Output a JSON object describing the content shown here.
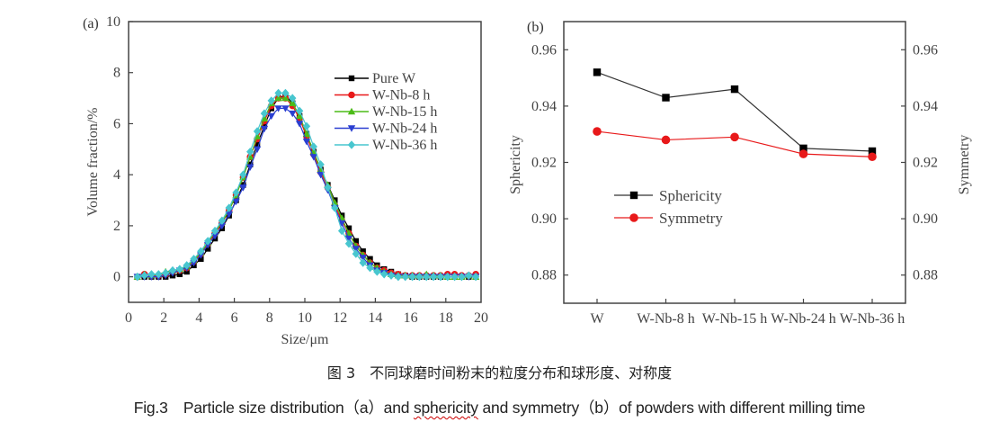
{
  "chart_data": [
    {
      "type": "line",
      "panel_label": "(a)",
      "title": "",
      "xlabel": "Size/μm",
      "ylabel": "Volume fraction/%",
      "xlim": [
        0,
        20
      ],
      "ylim": [
        -1,
        10
      ],
      "xticks": [
        0,
        2,
        4,
        6,
        8,
        10,
        12,
        14,
        16,
        18,
        20
      ],
      "yticks": [
        0,
        2,
        4,
        6,
        8,
        10
      ],
      "grid": false,
      "legend_position": "upper-right",
      "x": [
        0.5,
        0.9,
        1.3,
        1.7,
        2.1,
        2.5,
        2.9,
        3.3,
        3.7,
        4.1,
        4.5,
        4.9,
        5.3,
        5.7,
        6.1,
        6.5,
        6.9,
        7.3,
        7.7,
        8.1,
        8.5,
        8.9,
        9.3,
        9.7,
        10.1,
        10.5,
        10.9,
        11.3,
        11.7,
        12.1,
        12.5,
        12.9,
        13.3,
        13.7,
        14.1,
        14.5,
        14.9,
        15.3,
        15.7,
        16.1,
        16.5,
        16.9,
        17.3,
        17.7,
        18.1,
        18.5,
        18.9,
        19.3,
        19.7
      ],
      "series": [
        {
          "name": "Pure W",
          "color": "#000000",
          "marker": "square",
          "values": [
            0,
            0,
            0,
            0,
            0,
            0.05,
            0.1,
            0.2,
            0.45,
            0.7,
            1.1,
            1.5,
            1.9,
            2.4,
            3.0,
            3.6,
            4.4,
            5.2,
            5.9,
            6.6,
            7.0,
            7.1,
            6.8,
            6.3,
            5.6,
            4.9,
            4.2,
            3.6,
            3.0,
            2.4,
            1.9,
            1.4,
            1.0,
            0.7,
            0.45,
            0.3,
            0.2,
            0.1,
            0.05,
            0,
            0,
            0,
            0,
            0,
            0,
            0,
            0,
            0,
            0
          ]
        },
        {
          "name": "W-Nb-8 h",
          "color": "#e8191a",
          "marker": "circle",
          "values": [
            0,
            0.1,
            0.05,
            0.05,
            0.1,
            0.2,
            0.25,
            0.35,
            0.6,
            0.9,
            1.3,
            1.7,
            2.1,
            2.6,
            3.2,
            3.9,
            4.7,
            5.4,
            6.1,
            6.7,
            7.0,
            7.0,
            6.7,
            6.2,
            5.5,
            4.8,
            4.1,
            3.5,
            2.8,
            2.2,
            1.7,
            1.2,
            0.85,
            0.55,
            0.35,
            0.25,
            0.15,
            0.1,
            0.05,
            0.05,
            0.05,
            0.05,
            0.05,
            0.05,
            0.1,
            0.1,
            0.05,
            0.05,
            0.1
          ]
        },
        {
          "name": "W-Nb-15 h",
          "color": "#4cbb17",
          "marker": "triangle-up",
          "values": [
            0,
            0.1,
            0.05,
            0.1,
            0.2,
            0.25,
            0.3,
            0.4,
            0.65,
            0.95,
            1.35,
            1.75,
            2.15,
            2.6,
            3.2,
            3.9,
            4.7,
            5.5,
            6.2,
            6.8,
            7.0,
            7.0,
            6.8,
            6.3,
            5.6,
            4.9,
            4.2,
            3.6,
            2.9,
            2.3,
            1.7,
            1.2,
            0.85,
            0.55,
            0.35,
            0.2,
            0.1,
            0.05,
            0.05,
            0.05,
            0.05,
            0.1,
            0.05,
            0.05,
            0,
            0,
            0,
            0.05,
            0
          ]
        },
        {
          "name": "W-Nb-24 h",
          "color": "#2a3fd1",
          "marker": "triangle-down",
          "values": [
            0,
            0,
            0,
            0,
            0.05,
            0.15,
            0.25,
            0.35,
            0.55,
            0.85,
            1.25,
            1.6,
            2.0,
            2.45,
            2.95,
            3.5,
            4.3,
            5.0,
            5.8,
            6.3,
            6.6,
            6.6,
            6.4,
            6.0,
            5.3,
            4.7,
            4.0,
            3.4,
            2.7,
            2.1,
            1.5,
            1.1,
            0.75,
            0.45,
            0.25,
            0.15,
            0.05,
            0,
            0,
            0,
            0,
            0,
            0,
            0,
            0,
            0,
            0,
            0,
            0
          ]
        },
        {
          "name": "W-Nb-36 h",
          "color": "#48c6cf",
          "marker": "diamond",
          "values": [
            0,
            0.05,
            0.1,
            0.1,
            0.15,
            0.25,
            0.3,
            0.45,
            0.7,
            1.0,
            1.4,
            1.8,
            2.2,
            2.7,
            3.3,
            4.0,
            4.9,
            5.7,
            6.4,
            6.9,
            7.2,
            7.2,
            7.0,
            6.5,
            5.9,
            5.1,
            4.4,
            3.5,
            2.7,
            1.8,
            1.3,
            0.9,
            0.55,
            0.35,
            0.2,
            0.1,
            0.05,
            0,
            0,
            0,
            0,
            0,
            0,
            0,
            0,
            0,
            0,
            0.05,
            0
          ]
        }
      ]
    },
    {
      "type": "line",
      "panel_label": "(b)",
      "title": "",
      "xlabel": "",
      "ylabel": "Sphericity",
      "ylabel_right": "Symmetry",
      "categories": [
        "W",
        "W-Nb-8 h",
        "W-Nb-15 h",
        "W-Nb-24 h",
        "W-Nb-36 h"
      ],
      "ylim": [
        0.87,
        0.97
      ],
      "ylim_right": [
        0.87,
        0.97
      ],
      "yticks": [
        "0.88",
        "0.90",
        "0.92",
        "0.94",
        "0.96"
      ],
      "grid": false,
      "legend_position": "center-left",
      "series": [
        {
          "name": "Sphericity",
          "color": "#000000",
          "line_color": "#333333",
          "marker": "square",
          "axis": "left",
          "values": [
            0.952,
            0.943,
            0.946,
            0.925,
            0.924
          ]
        },
        {
          "name": "Symmetry",
          "color": "#e8191a",
          "line_color": "#e8191a",
          "marker": "circle",
          "axis": "right",
          "values": [
            0.931,
            0.928,
            0.929,
            0.923,
            0.922
          ]
        }
      ]
    }
  ],
  "caption": {
    "chinese": "图 3　不同球磨时间粉末的粒度分布和球形度、对称度",
    "english_pre": "Fig.3　Particle size distribution（a）and ",
    "english_squiggle": "sphericity",
    "english_post": " and symmetry（b）of powders with different milling time"
  }
}
